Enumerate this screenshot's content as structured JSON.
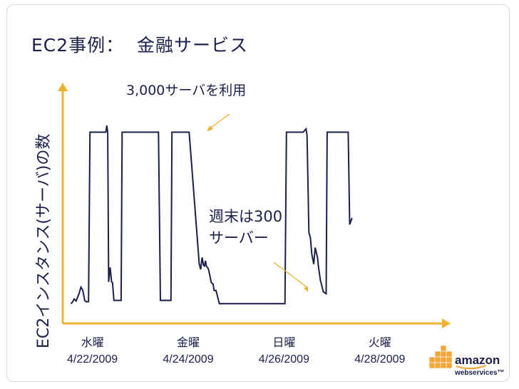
{
  "slide": {
    "title": "EC2事例：  金融サービス"
  },
  "chart_data": {
    "type": "line",
    "title": "",
    "xlabel": "",
    "ylabel": "EC2インスタンス(サーバ)の数",
    "x_tick_labels": [
      {
        "day": "水曜",
        "date": "4/22/2009",
        "x": 3
      },
      {
        "day": "金曜",
        "date": "4/24/2009",
        "x": 5
      },
      {
        "day": "日曜",
        "date": "4/26/2009",
        "x": 7
      },
      {
        "day": "火曜",
        "date": "4/28/2009",
        "x": 9
      }
    ],
    "xlim": [
      2.5,
      10
    ],
    "ylim": [
      0,
      3500
    ],
    "grid": false,
    "annotations": [
      {
        "text": "3,000サーバを利用",
        "target_x": 5.3,
        "target_y": 3000
      },
      {
        "text": "週末は300\nサーバー",
        "target_x": 7.5,
        "target_y": 300
      }
    ],
    "series": [
      {
        "name": "",
        "color": "#1b1f4a",
        "x": [
          2.55,
          2.58,
          2.62,
          2.66,
          2.72,
          2.76,
          2.8,
          2.84,
          2.87,
          2.92,
          2.95,
          3.05,
          3.28,
          3.3,
          3.32,
          3.34,
          3.37,
          3.4,
          3.42,
          3.45,
          3.5,
          3.52,
          3.56,
          3.6,
          3.62,
          3.9,
          4.1,
          4.38,
          4.42,
          4.5,
          4.56,
          4.6,
          4.64,
          4.66,
          5.0,
          5.02,
          5.23,
          5.26,
          5.29,
          5.32,
          5.34,
          5.36,
          5.38,
          5.42,
          5.46,
          5.48,
          5.52,
          5.54,
          5.58,
          5.65,
          7.02,
          7.05,
          7.4,
          7.46,
          7.48,
          7.52,
          7.55,
          7.58,
          7.62,
          7.65,
          7.7,
          7.72,
          7.76,
          7.78,
          7.82,
          7.88,
          7.9,
          8.27,
          8.29,
          8.34,
          8.37,
          8.42
        ],
        "values": [
          300,
          320,
          370,
          340,
          450,
          550,
          500,
          350,
          330,
          330,
          2900,
          2900,
          2900,
          3000,
          2900,
          630,
          850,
          630,
          620,
          350,
          350,
          350,
          350,
          350,
          2900,
          2900,
          2900,
          2900,
          350,
          350,
          350,
          350,
          350,
          2900,
          2900,
          2900,
          900,
          820,
          1000,
          880,
          870,
          950,
          870,
          830,
          700,
          620,
          600,
          500,
          500,
          300,
          300,
          2900,
          2900,
          2950,
          2850,
          1380,
          1300,
          1050,
          900,
          1150,
          1000,
          850,
          650,
          600,
          480,
          450,
          2900,
          2900,
          2900,
          2900,
          1500,
          1600
        ]
      }
    ]
  },
  "logo": {
    "brand": "amazon",
    "sub": "webservices™"
  },
  "colors": {
    "axis": "#f0b030",
    "line": "#1b1f4a",
    "annotation_text": "#1b1f4a",
    "arrow": "#f0b030",
    "logo_cube": "#f3a738",
    "logo_text": "#1b1f4a"
  }
}
